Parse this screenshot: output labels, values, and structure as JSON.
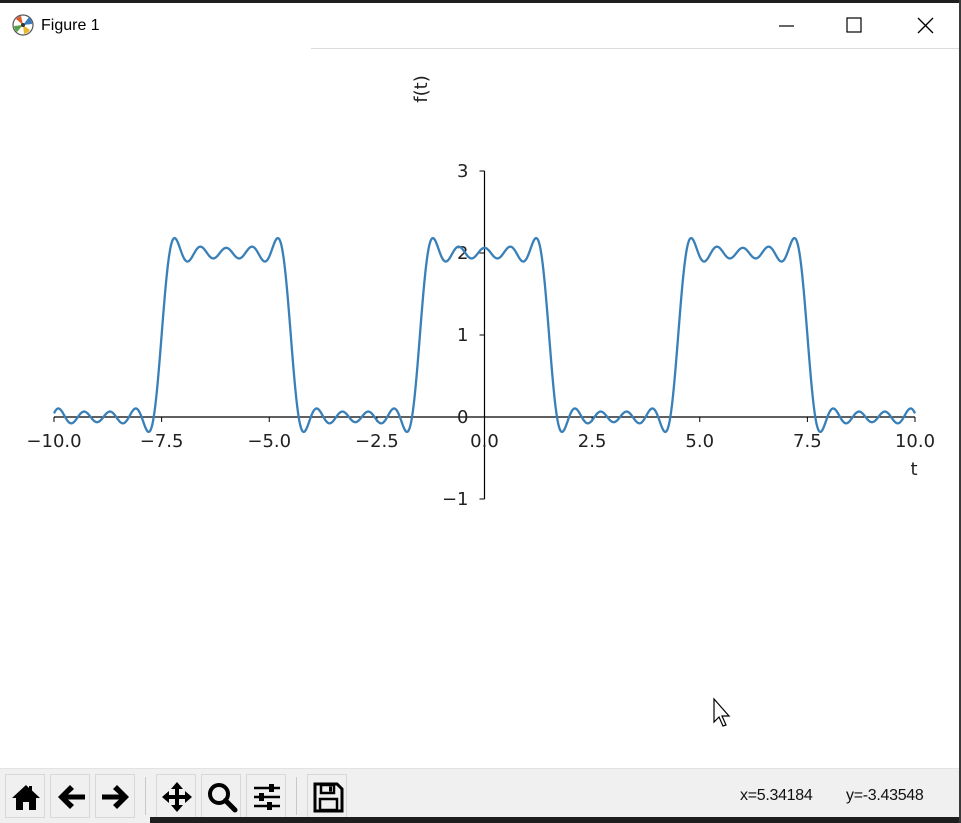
{
  "window": {
    "title": "Figure 1",
    "icon": "matplotlib-logo-icon"
  },
  "titlebar_buttons": [
    "minimize-icon",
    "maximize-icon",
    "close-icon"
  ],
  "chart_data": {
    "type": "line",
    "title": "",
    "xlabel": "t",
    "ylabel": "f(t)",
    "xlim": [
      -10.0,
      10.0
    ],
    "ylim": [
      -1,
      3
    ],
    "x_ticks": [
      "−10.0",
      "−7.5",
      "−5.0",
      "−2.5",
      "0.0",
      "2.5",
      "5.0",
      "7.5",
      "10.0"
    ],
    "x_tick_values": [
      -10.0,
      -7.5,
      -5.0,
      -2.5,
      0.0,
      2.5,
      5.0,
      7.5,
      10.0
    ],
    "y_ticks": [
      "−1",
      "0",
      "1",
      "2",
      "3"
    ],
    "y_tick_values": [
      -1,
      0,
      1,
      2,
      3
    ],
    "grid": false,
    "spines": "centered at origin",
    "series": [
      {
        "color": "#3a80b8",
        "function": "Fourier partial sum of a square wave: 1 + (4/pi)·Σ sin(k·pi/2)/k·cos(k·pi·t/3), k = 1..9 (high = 2, low = 0, period 6)",
        "x": [
          -10.0,
          -9.0,
          -8.0,
          -7.0,
          -6.0,
          -5.0,
          -4.0,
          -3.0,
          -2.0,
          -1.0,
          0.0,
          1.0,
          2.0,
          3.0,
          4.0,
          5.0,
          6.0,
          7.0,
          8.0,
          9.0,
          10.0
        ],
        "y": [
          0.0,
          0.05,
          0.0,
          2.0,
          2.0,
          2.0,
          0.0,
          0.05,
          0.0,
          2.0,
          2.0,
          2.0,
          0.0,
          0.05,
          0.0,
          2.0,
          2.0,
          2.0,
          0.0,
          0.05,
          0.0
        ]
      }
    ]
  },
  "toolbar": {
    "tools": [
      {
        "name": "home-icon"
      },
      {
        "name": "back-arrow-icon"
      },
      {
        "name": "forward-arrow-icon"
      },
      {
        "name": "pan-move-icon"
      },
      {
        "name": "zoom-magnifier-icon"
      },
      {
        "name": "configure-subplots-icon"
      },
      {
        "name": "save-floppy-icon"
      }
    ],
    "coord_x": "x=5.34184",
    "coord_y": "y=-3.43548"
  },
  "colors": {
    "line": "#3a80b8",
    "axes": "#000000",
    "toolbar_bg": "#f0f0f0"
  }
}
